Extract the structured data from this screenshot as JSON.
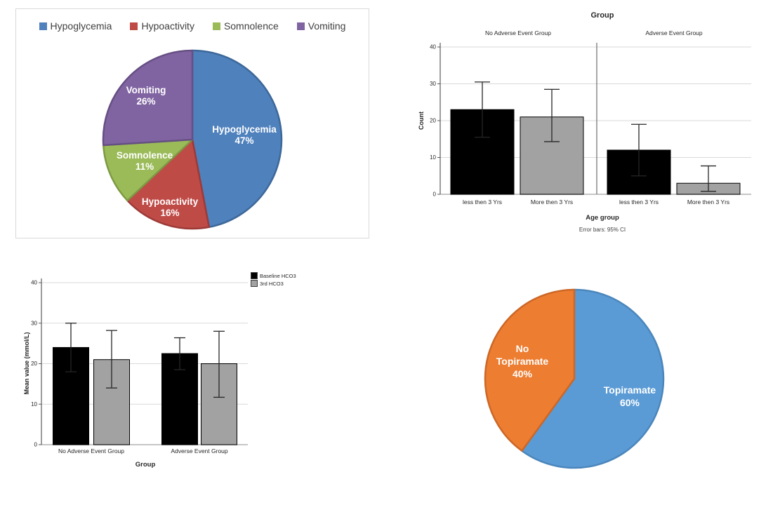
{
  "chart_data": [
    {
      "id": "adverse_events_pie",
      "type": "pie",
      "legend_position": "top",
      "legend": [
        {
          "label": "Hypoglycemia",
          "color": "#4f81bd"
        },
        {
          "label": "Hypoactivity",
          "color": "#bf4b47"
        },
        {
          "label": "Somnolence",
          "color": "#9bbb59"
        },
        {
          "label": "Vomiting",
          "color": "#8064a2"
        }
      ],
      "slices": [
        {
          "label": "Hypoglycemia",
          "value": 47,
          "pct_label": "47%",
          "color": "#4f81bd",
          "stroke": "#3d6899"
        },
        {
          "label": "Hypoactivity",
          "value": 16,
          "pct_label": "16%",
          "color": "#bf4b47",
          "stroke": "#9c3a37"
        },
        {
          "label": "Somnolence",
          "value": 11,
          "pct_label": "11%",
          "color": "#9bbb59",
          "stroke": "#7d9a43"
        },
        {
          "label": "Vomiting",
          "value": 26,
          "pct_label": "26%",
          "color": "#8064a2",
          "stroke": "#664f83"
        }
      ]
    },
    {
      "id": "count_by_age_panels",
      "type": "bar",
      "title": "Group",
      "ylabel": "Count",
      "xlabel": "Age group",
      "footnote": "Error bars: 95% CI",
      "ylim": [
        0,
        40
      ],
      "yticks": [
        0,
        10,
        20,
        30,
        40
      ],
      "grid": true,
      "panels": [
        {
          "label": "No Adverse Event Group",
          "bars": [
            {
              "category": "less then 3 Yrs",
              "value": 23,
              "ci": [
                15.5,
                30.5
              ],
              "color": "#000000"
            },
            {
              "category": "More then 3 Yrs",
              "value": 21,
              "ci": [
                14.3,
                28.5
              ],
              "color": "#a2a2a2"
            }
          ]
        },
        {
          "label": "Adverse Event Group",
          "bars": [
            {
              "category": "less then 3 Yrs",
              "value": 12,
              "ci": [
                5.0,
                19.0
              ],
              "color": "#000000"
            },
            {
              "category": "More then 3 Yrs",
              "value": 3,
              "ci": [
                0.8,
                7.7
              ],
              "color": "#a2a2a2"
            }
          ]
        }
      ]
    },
    {
      "id": "hco3_grouped_bars",
      "type": "bar",
      "ylabel": "Mean value (mmol/L)",
      "xlabel": "Group",
      "ylim": [
        0,
        40
      ],
      "yticks": [
        0,
        10,
        20,
        30,
        40
      ],
      "grid": true,
      "legend_position": "top-right",
      "categories": [
        "No Adverse Event Group",
        "Adverse Event Group"
      ],
      "series": [
        {
          "name": "Baseline HCO3",
          "color": "#000000",
          "values": [
            24,
            22.5
          ],
          "ci": [
            [
              18.0,
              30.0
            ],
            [
              18.5,
              26.4
            ]
          ]
        },
        {
          "name": "3rd HCO3",
          "color": "#a2a2a2",
          "values": [
            21,
            20
          ],
          "ci": [
            [
              14.0,
              28.2
            ],
            [
              11.7,
              28.0
            ]
          ]
        }
      ]
    },
    {
      "id": "topiramate_pie",
      "type": "pie",
      "slices": [
        {
          "label": "Topiramate",
          "value": 60,
          "pct_label": "60%",
          "color": "#5b9bd5",
          "stroke": "#4a86bc"
        },
        {
          "label": "No Topiramate",
          "value": 40,
          "pct_label": "40%",
          "color": "#ed7d31",
          "stroke": "#cc6726"
        }
      ]
    }
  ]
}
